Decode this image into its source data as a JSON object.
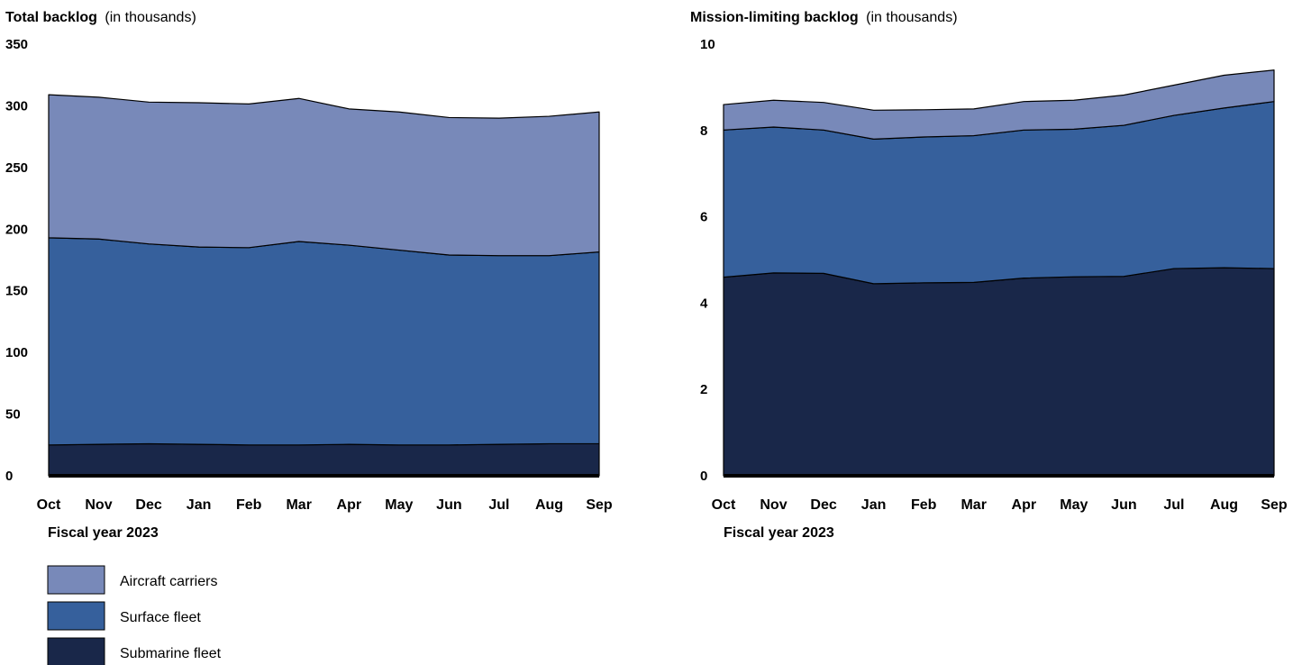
{
  "legend": {
    "items": [
      {
        "label": "Aircraft carriers",
        "color": "#7889b9"
      },
      {
        "label": "Surface fleet",
        "color": "#36609c"
      },
      {
        "label": "Submarine fleet",
        "color": "#192749"
      }
    ]
  },
  "chart_data": [
    {
      "type": "area",
      "stacked": true,
      "title": "Total backlog",
      "title_suffix": "(in thousands)",
      "xlabel": "Fiscal year 2023",
      "ylabel": "",
      "categories": [
        "Oct",
        "Nov",
        "Dec",
        "Jan",
        "Feb",
        "Mar",
        "Apr",
        "May",
        "Jun",
        "Jul",
        "Aug",
        "Sep"
      ],
      "ylim": [
        0,
        350
      ],
      "yticks": [
        0,
        50,
        100,
        150,
        200,
        250,
        300,
        350
      ],
      "grid": false,
      "legend_position": "bottom-left",
      "series": [
        {
          "name": "Submarine fleet",
          "color": "#192749",
          "values": [
            25,
            25.5,
            26,
            25.5,
            25,
            25,
            25.5,
            25,
            25,
            25.5,
            26,
            26
          ]
        },
        {
          "name": "Surface fleet",
          "color": "#36609c",
          "values": [
            168,
            166.5,
            162,
            160,
            160,
            165,
            161.5,
            158,
            154,
            153,
            152.5,
            155.5
          ]
        },
        {
          "name": "Aircraft carriers",
          "color": "#7889b9",
          "values": [
            116,
            115,
            115,
            117,
            116.5,
            116,
            110.5,
            112,
            111.5,
            111.5,
            113,
            113.5
          ]
        }
      ]
    },
    {
      "type": "area",
      "stacked": true,
      "title": "Mission-limiting backlog",
      "title_suffix": "(in thousands)",
      "xlabel": "Fiscal year 2023",
      "ylabel": "",
      "categories": [
        "Oct",
        "Nov",
        "Dec",
        "Jan",
        "Feb",
        "Mar",
        "Apr",
        "May",
        "Jun",
        "Jul",
        "Aug",
        "Sep"
      ],
      "ylim": [
        0,
        10
      ],
      "yticks": [
        0,
        2,
        4,
        6,
        8,
        10
      ],
      "grid": false,
      "series": [
        {
          "name": "Submarine fleet",
          "color": "#192749",
          "values": [
            4.6,
            4.7,
            4.69,
            4.45,
            4.47,
            4.48,
            4.58,
            4.61,
            4.62,
            4.8,
            4.82,
            4.8
          ]
        },
        {
          "name": "Surface fleet",
          "color": "#36609c",
          "values": [
            3.41,
            3.38,
            3.32,
            3.35,
            3.38,
            3.4,
            3.43,
            3.42,
            3.5,
            3.55,
            3.7,
            3.87
          ]
        },
        {
          "name": "Aircraft carriers",
          "color": "#7889b9",
          "values": [
            0.59,
            0.62,
            0.64,
            0.67,
            0.63,
            0.62,
            0.66,
            0.67,
            0.7,
            0.7,
            0.76,
            0.73
          ]
        }
      ]
    }
  ]
}
